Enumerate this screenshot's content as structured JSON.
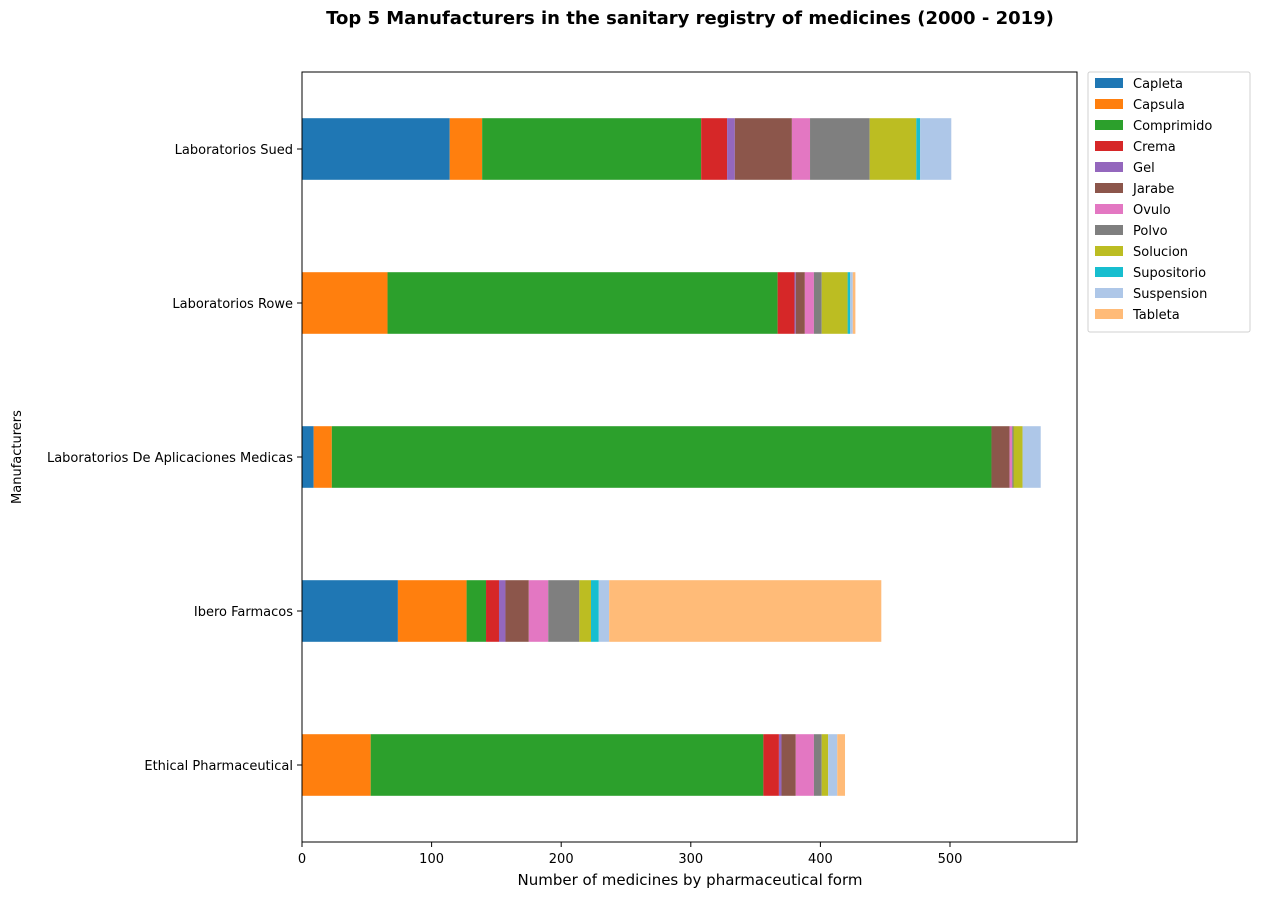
{
  "chart_data": {
    "type": "bar",
    "orientation": "horizontal",
    "stacked": true,
    "title": "Top 5 Manufacturers in the sanitary registry of medicines (2000 - 2019)",
    "xlabel": "Number of medicines by pharmaceutical form",
    "ylabel": "Manufacturers",
    "xlim": [
      0,
      598
    ],
    "xticks": [
      0,
      100,
      200,
      300,
      400,
      500
    ],
    "grid": false,
    "legend_position": "outside-right-top",
    "categories": [
      "Ethical Pharmaceutical",
      "Ibero Farmacos",
      "Laboratorios De Aplicaciones Medicas",
      "Laboratorios Rowe",
      "Laboratorios Sued"
    ],
    "series": [
      {
        "name": "Capleta",
        "color": "#1f77b4",
        "values": [
          0,
          74,
          9,
          0,
          114
        ]
      },
      {
        "name": "Capsula",
        "color": "#ff7f0e",
        "values": [
          53,
          53,
          14,
          66,
          25
        ]
      },
      {
        "name": "Comprimido",
        "color": "#2ca02c",
        "values": [
          303,
          15,
          509,
          301,
          169
        ]
      },
      {
        "name": "Crema",
        "color": "#d62728",
        "values": [
          12,
          10,
          0,
          13,
          20
        ]
      },
      {
        "name": "Gel",
        "color": "#9467bd",
        "values": [
          2,
          5,
          0,
          1,
          6
        ]
      },
      {
        "name": "Jarabe",
        "color": "#8c564b",
        "values": [
          11,
          18,
          14,
          7,
          44
        ]
      },
      {
        "name": "Ovulo",
        "color": "#e377c2",
        "values": [
          14,
          15,
          2,
          7,
          14
        ]
      },
      {
        "name": "Polvo",
        "color": "#7f7f7f",
        "values": [
          6,
          24,
          1,
          6,
          46
        ]
      },
      {
        "name": "Solucion",
        "color": "#bcbd22",
        "values": [
          5,
          9,
          7,
          20,
          36
        ]
      },
      {
        "name": "Supositorio",
        "color": "#17becf",
        "values": [
          0,
          6,
          0,
          2,
          3
        ]
      },
      {
        "name": "Suspension",
        "color": "#aec7e8",
        "values": [
          7,
          8,
          14,
          2,
          24
        ]
      },
      {
        "name": "Tableta",
        "color": "#ffbb78",
        "values": [
          6,
          210,
          0,
          2,
          0
        ]
      }
    ]
  }
}
